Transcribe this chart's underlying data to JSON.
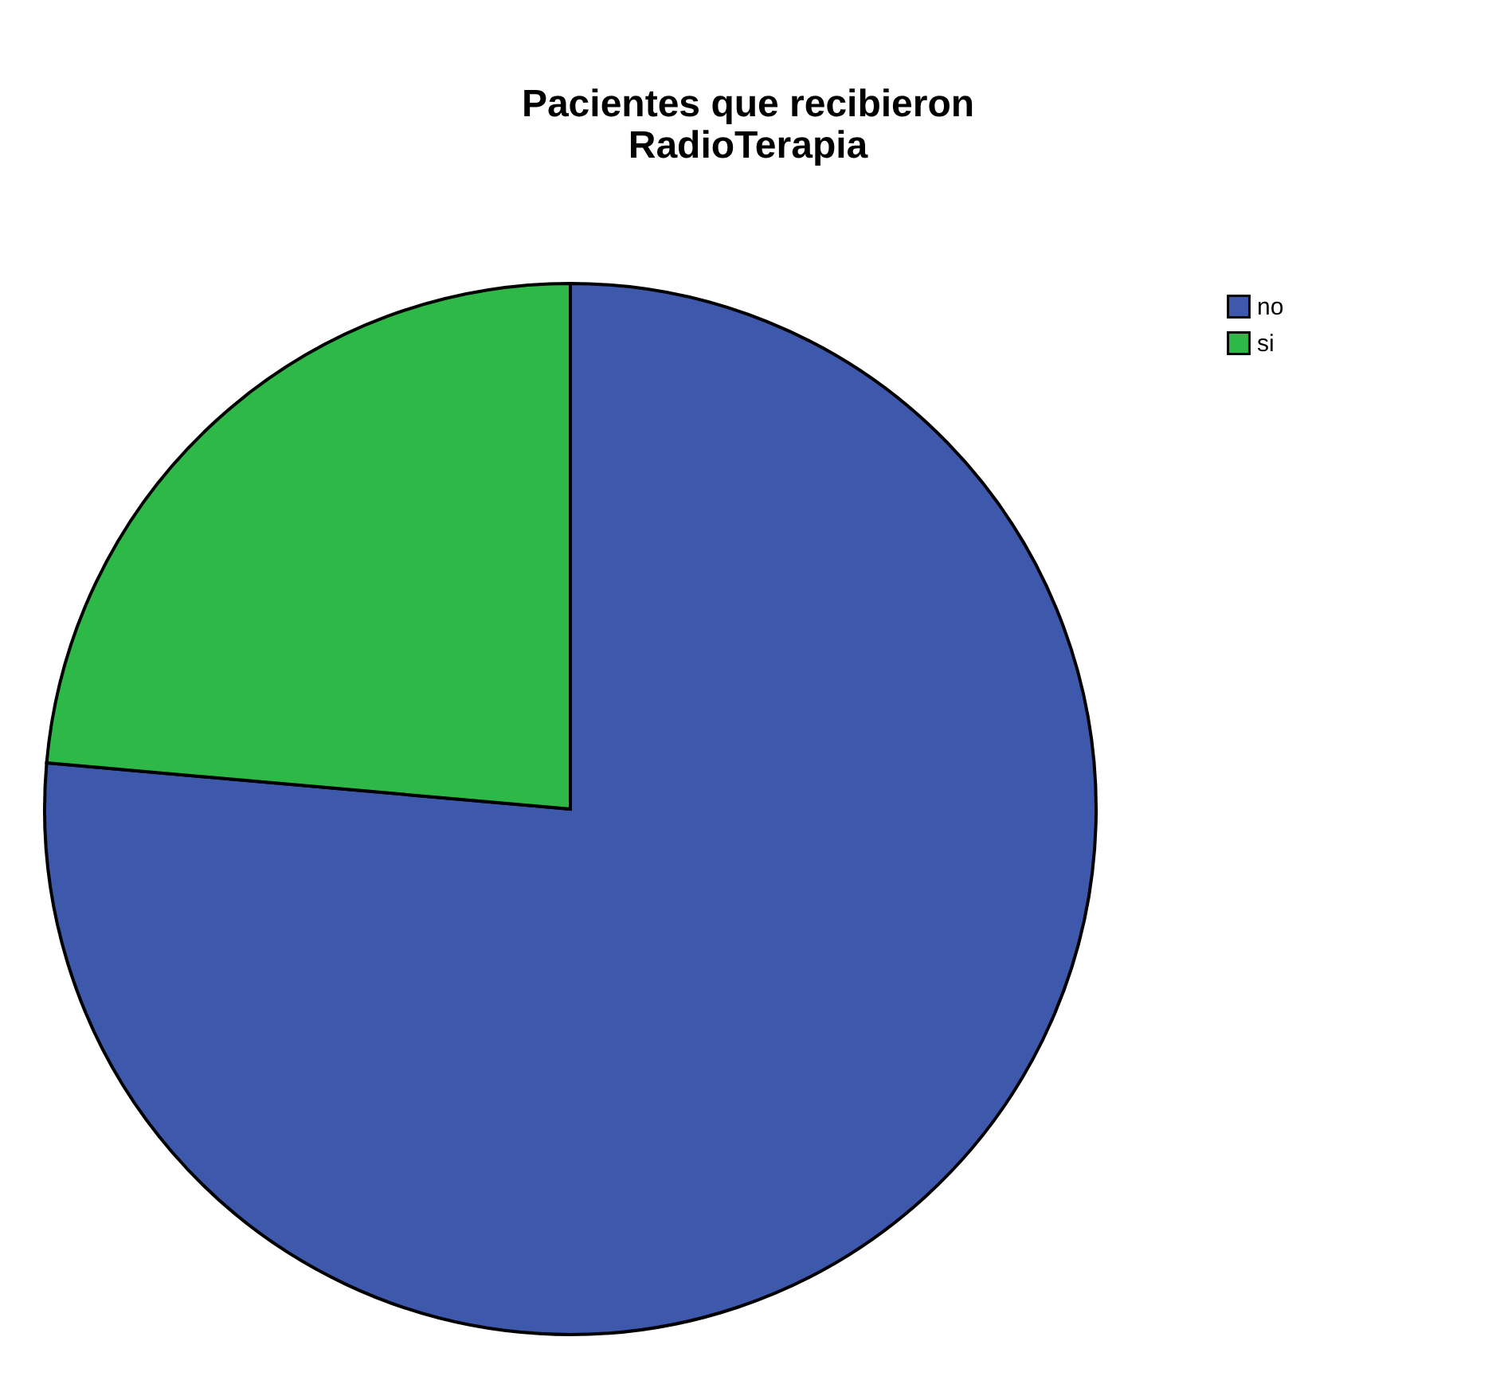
{
  "chart_data": {
    "type": "pie",
    "title": "Pacientes que recibieron\nRadioTerapia",
    "categories": [
      "no",
      "si"
    ],
    "values": [
      76.4,
      23.6
    ],
    "colors": [
      "#3e58ac",
      "#2eb848"
    ],
    "legend": "top right"
  }
}
